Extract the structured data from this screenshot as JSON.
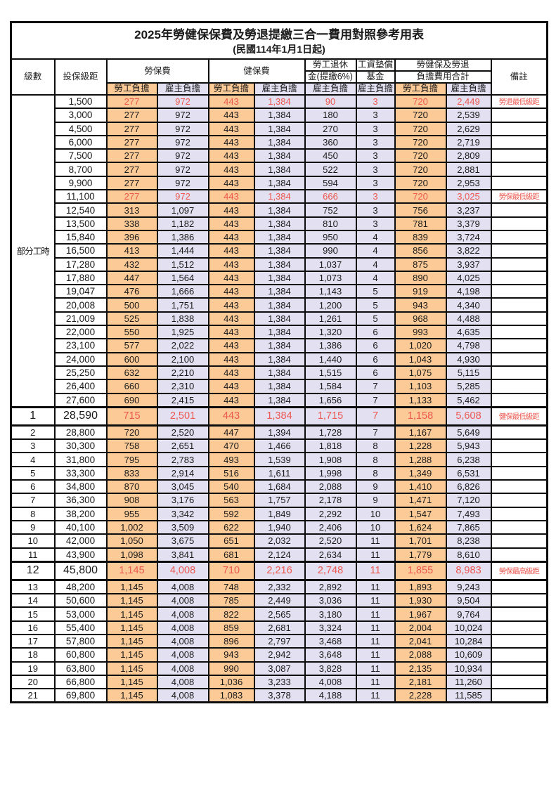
{
  "title": "2025年勞健保保費及勞退提繳三合一費用對照參考用表",
  "subtitle": "(民國114年1月1日起)",
  "header": {
    "level": "級數",
    "bracket": "投保級距",
    "labor_ins": "勞保費",
    "health_ins": "健保費",
    "pension_line1": "勞工退休",
    "pension_line2": "金(提繳6%)",
    "wage_fund_line1": "工資墊償",
    "wage_fund_line2": "基金",
    "total_line1": "勞健保及勞退",
    "total_line2": "負擔費用合計",
    "remark": "備註",
    "employee": "勞工負擔",
    "employer": "雇主負擔"
  },
  "part_time_label": "部分工時",
  "part_time_rowspan": 23,
  "colors": {
    "employee_bg": "#FBCA97",
    "employer_bg": "#E3E0F1",
    "highlight_red": "#EC5850",
    "border": "#0d0d0d"
  },
  "rows": [
    {
      "level": "",
      "bracket": "1,500",
      "values": [
        "277",
        "972",
        "443",
        "1,384",
        "90",
        "3",
        "720",
        "2,449"
      ],
      "note": "勞退最低級距",
      "red": true,
      "big": false
    },
    {
      "level": "",
      "bracket": "3,000",
      "values": [
        "277",
        "972",
        "443",
        "1,384",
        "180",
        "3",
        "720",
        "2,539"
      ],
      "note": "",
      "red": false,
      "big": false
    },
    {
      "level": "",
      "bracket": "4,500",
      "values": [
        "277",
        "972",
        "443",
        "1,384",
        "270",
        "3",
        "720",
        "2,629"
      ],
      "note": "",
      "red": false,
      "big": false
    },
    {
      "level": "",
      "bracket": "6,000",
      "values": [
        "277",
        "972",
        "443",
        "1,384",
        "360",
        "3",
        "720",
        "2,719"
      ],
      "note": "",
      "red": false,
      "big": false
    },
    {
      "level": "",
      "bracket": "7,500",
      "values": [
        "277",
        "972",
        "443",
        "1,384",
        "450",
        "3",
        "720",
        "2,809"
      ],
      "note": "",
      "red": false,
      "big": false
    },
    {
      "level": "",
      "bracket": "8,700",
      "values": [
        "277",
        "972",
        "443",
        "1,384",
        "522",
        "3",
        "720",
        "2,881"
      ],
      "note": "",
      "red": false,
      "big": false
    },
    {
      "level": "",
      "bracket": "9,900",
      "values": [
        "277",
        "972",
        "443",
        "1,384",
        "594",
        "3",
        "720",
        "2,953"
      ],
      "note": "",
      "red": false,
      "big": false
    },
    {
      "level": "",
      "bracket": "11,100",
      "values": [
        "277",
        "972",
        "443",
        "1,384",
        "666",
        "3",
        "720",
        "3,025"
      ],
      "note": "勞保最低級距",
      "red": true,
      "big": false
    },
    {
      "level": "",
      "bracket": "12,540",
      "values": [
        "313",
        "1,097",
        "443",
        "1,384",
        "752",
        "3",
        "756",
        "3,237"
      ],
      "note": "",
      "red": false,
      "big": false
    },
    {
      "level": "",
      "bracket": "13,500",
      "values": [
        "338",
        "1,182",
        "443",
        "1,384",
        "810",
        "3",
        "781",
        "3,379"
      ],
      "note": "",
      "red": false,
      "big": false
    },
    {
      "level": "",
      "bracket": "15,840",
      "values": [
        "396",
        "1,386",
        "443",
        "1,384",
        "950",
        "4",
        "839",
        "3,724"
      ],
      "note": "",
      "red": false,
      "big": false
    },
    {
      "level": "",
      "bracket": "16,500",
      "values": [
        "413",
        "1,444",
        "443",
        "1,384",
        "990",
        "4",
        "856",
        "3,822"
      ],
      "note": "",
      "red": false,
      "big": false
    },
    {
      "level": "",
      "bracket": "17,280",
      "values": [
        "432",
        "1,512",
        "443",
        "1,384",
        "1,037",
        "4",
        "875",
        "3,937"
      ],
      "note": "",
      "red": false,
      "big": false
    },
    {
      "level": "",
      "bracket": "17,880",
      "values": [
        "447",
        "1,564",
        "443",
        "1,384",
        "1,073",
        "4",
        "890",
        "4,025"
      ],
      "note": "",
      "red": false,
      "big": false
    },
    {
      "level": "",
      "bracket": "19,047",
      "values": [
        "476",
        "1,666",
        "443",
        "1,384",
        "1,143",
        "5",
        "919",
        "4,198"
      ],
      "note": "",
      "red": false,
      "big": false
    },
    {
      "level": "",
      "bracket": "20,008",
      "values": [
        "500",
        "1,751",
        "443",
        "1,384",
        "1,200",
        "5",
        "943",
        "4,340"
      ],
      "note": "",
      "red": false,
      "big": false
    },
    {
      "level": "",
      "bracket": "21,009",
      "values": [
        "525",
        "1,838",
        "443",
        "1,384",
        "1,261",
        "5",
        "968",
        "4,488"
      ],
      "note": "",
      "red": false,
      "big": false
    },
    {
      "level": "",
      "bracket": "22,000",
      "values": [
        "550",
        "1,925",
        "443",
        "1,384",
        "1,320",
        "6",
        "993",
        "4,635"
      ],
      "note": "",
      "red": false,
      "big": false
    },
    {
      "level": "",
      "bracket": "23,100",
      "values": [
        "577",
        "2,022",
        "443",
        "1,384",
        "1,386",
        "6",
        "1,020",
        "4,798"
      ],
      "note": "",
      "red": false,
      "big": false
    },
    {
      "level": "",
      "bracket": "24,000",
      "values": [
        "600",
        "2,100",
        "443",
        "1,384",
        "1,440",
        "6",
        "1,043",
        "4,930"
      ],
      "note": "",
      "red": false,
      "big": false
    },
    {
      "level": "",
      "bracket": "25,250",
      "values": [
        "632",
        "2,210",
        "443",
        "1,384",
        "1,515",
        "6",
        "1,075",
        "5,115"
      ],
      "note": "",
      "red": false,
      "big": false
    },
    {
      "level": "",
      "bracket": "26,400",
      "values": [
        "660",
        "2,310",
        "443",
        "1,384",
        "1,584",
        "7",
        "1,103",
        "5,285"
      ],
      "note": "",
      "red": false,
      "big": false
    },
    {
      "level": "",
      "bracket": "27,600",
      "values": [
        "690",
        "2,415",
        "443",
        "1,384",
        "1,656",
        "7",
        "1,133",
        "5,462"
      ],
      "note": "",
      "red": false,
      "big": false
    },
    {
      "level": "1",
      "bracket": "28,590",
      "values": [
        "715",
        "2,501",
        "443",
        "1,384",
        "1,715",
        "7",
        "1,158",
        "5,608"
      ],
      "note": "健保最低級距",
      "red": true,
      "big": true
    },
    {
      "level": "2",
      "bracket": "28,800",
      "values": [
        "720",
        "2,520",
        "447",
        "1,394",
        "1,728",
        "7",
        "1,167",
        "5,649"
      ],
      "note": "",
      "red": false,
      "big": false
    },
    {
      "level": "3",
      "bracket": "30,300",
      "values": [
        "758",
        "2,651",
        "470",
        "1,466",
        "1,818",
        "8",
        "1,228",
        "5,943"
      ],
      "note": "",
      "red": false,
      "big": false
    },
    {
      "level": "4",
      "bracket": "31,800",
      "values": [
        "795",
        "2,783",
        "493",
        "1,539",
        "1,908",
        "8",
        "1,288",
        "6,238"
      ],
      "note": "",
      "red": false,
      "big": false
    },
    {
      "level": "5",
      "bracket": "33,300",
      "values": [
        "833",
        "2,914",
        "516",
        "1,611",
        "1,998",
        "8",
        "1,349",
        "6,531"
      ],
      "note": "",
      "red": false,
      "big": false
    },
    {
      "level": "6",
      "bracket": "34,800",
      "values": [
        "870",
        "3,045",
        "540",
        "1,684",
        "2,088",
        "9",
        "1,410",
        "6,826"
      ],
      "note": "",
      "red": false,
      "big": false
    },
    {
      "level": "7",
      "bracket": "36,300",
      "values": [
        "908",
        "3,176",
        "563",
        "1,757",
        "2,178",
        "9",
        "1,471",
        "7,120"
      ],
      "note": "",
      "red": false,
      "big": false
    },
    {
      "level": "8",
      "bracket": "38,200",
      "values": [
        "955",
        "3,342",
        "592",
        "1,849",
        "2,292",
        "10",
        "1,547",
        "7,493"
      ],
      "note": "",
      "red": false,
      "big": false
    },
    {
      "level": "9",
      "bracket": "40,100",
      "values": [
        "1,002",
        "3,509",
        "622",
        "1,940",
        "2,406",
        "10",
        "1,624",
        "7,865"
      ],
      "note": "",
      "red": false,
      "big": false
    },
    {
      "level": "10",
      "bracket": "42,000",
      "values": [
        "1,050",
        "3,675",
        "651",
        "2,032",
        "2,520",
        "11",
        "1,701",
        "8,238"
      ],
      "note": "",
      "red": false,
      "big": false
    },
    {
      "level": "11",
      "bracket": "43,900",
      "values": [
        "1,098",
        "3,841",
        "681",
        "2,124",
        "2,634",
        "11",
        "1,779",
        "8,610"
      ],
      "note": "",
      "red": false,
      "big": false
    },
    {
      "level": "12",
      "bracket": "45,800",
      "values": [
        "1,145",
        "4,008",
        "710",
        "2,216",
        "2,748",
        "11",
        "1,855",
        "8,983"
      ],
      "note": "勞保最高級距",
      "red": true,
      "big": true
    },
    {
      "level": "13",
      "bracket": "48,200",
      "values": [
        "1,145",
        "4,008",
        "748",
        "2,332",
        "2,892",
        "11",
        "1,893",
        "9,243"
      ],
      "note": "",
      "red": false,
      "big": false
    },
    {
      "level": "14",
      "bracket": "50,600",
      "values": [
        "1,145",
        "4,008",
        "785",
        "2,449",
        "3,036",
        "11",
        "1,930",
        "9,504"
      ],
      "note": "",
      "red": false,
      "big": false
    },
    {
      "level": "15",
      "bracket": "53,000",
      "values": [
        "1,145",
        "4,008",
        "822",
        "2,565",
        "3,180",
        "11",
        "1,967",
        "9,764"
      ],
      "note": "",
      "red": false,
      "big": false
    },
    {
      "level": "16",
      "bracket": "55,400",
      "values": [
        "1,145",
        "4,008",
        "859",
        "2,681",
        "3,324",
        "11",
        "2,004",
        "10,024"
      ],
      "note": "",
      "red": false,
      "big": false
    },
    {
      "level": "17",
      "bracket": "57,800",
      "values": [
        "1,145",
        "4,008",
        "896",
        "2,797",
        "3,468",
        "11",
        "2,041",
        "10,284"
      ],
      "note": "",
      "red": false,
      "big": false
    },
    {
      "level": "18",
      "bracket": "60,800",
      "values": [
        "1,145",
        "4,008",
        "943",
        "2,942",
        "3,648",
        "11",
        "2,088",
        "10,609"
      ],
      "note": "",
      "red": false,
      "big": false
    },
    {
      "level": "19",
      "bracket": "63,800",
      "values": [
        "1,145",
        "4,008",
        "990",
        "3,087",
        "3,828",
        "11",
        "2,135",
        "10,934"
      ],
      "note": "",
      "red": false,
      "big": false
    },
    {
      "level": "20",
      "bracket": "66,800",
      "values": [
        "1,145",
        "4,008",
        "1,036",
        "3,233",
        "4,008",
        "11",
        "2,181",
        "11,260"
      ],
      "note": "",
      "red": false,
      "big": false
    },
    {
      "level": "21",
      "bracket": "69,800",
      "values": [
        "1,145",
        "4,008",
        "1,083",
        "3,378",
        "4,188",
        "11",
        "2,228",
        "11,585"
      ],
      "note": "",
      "red": false,
      "big": false
    }
  ]
}
